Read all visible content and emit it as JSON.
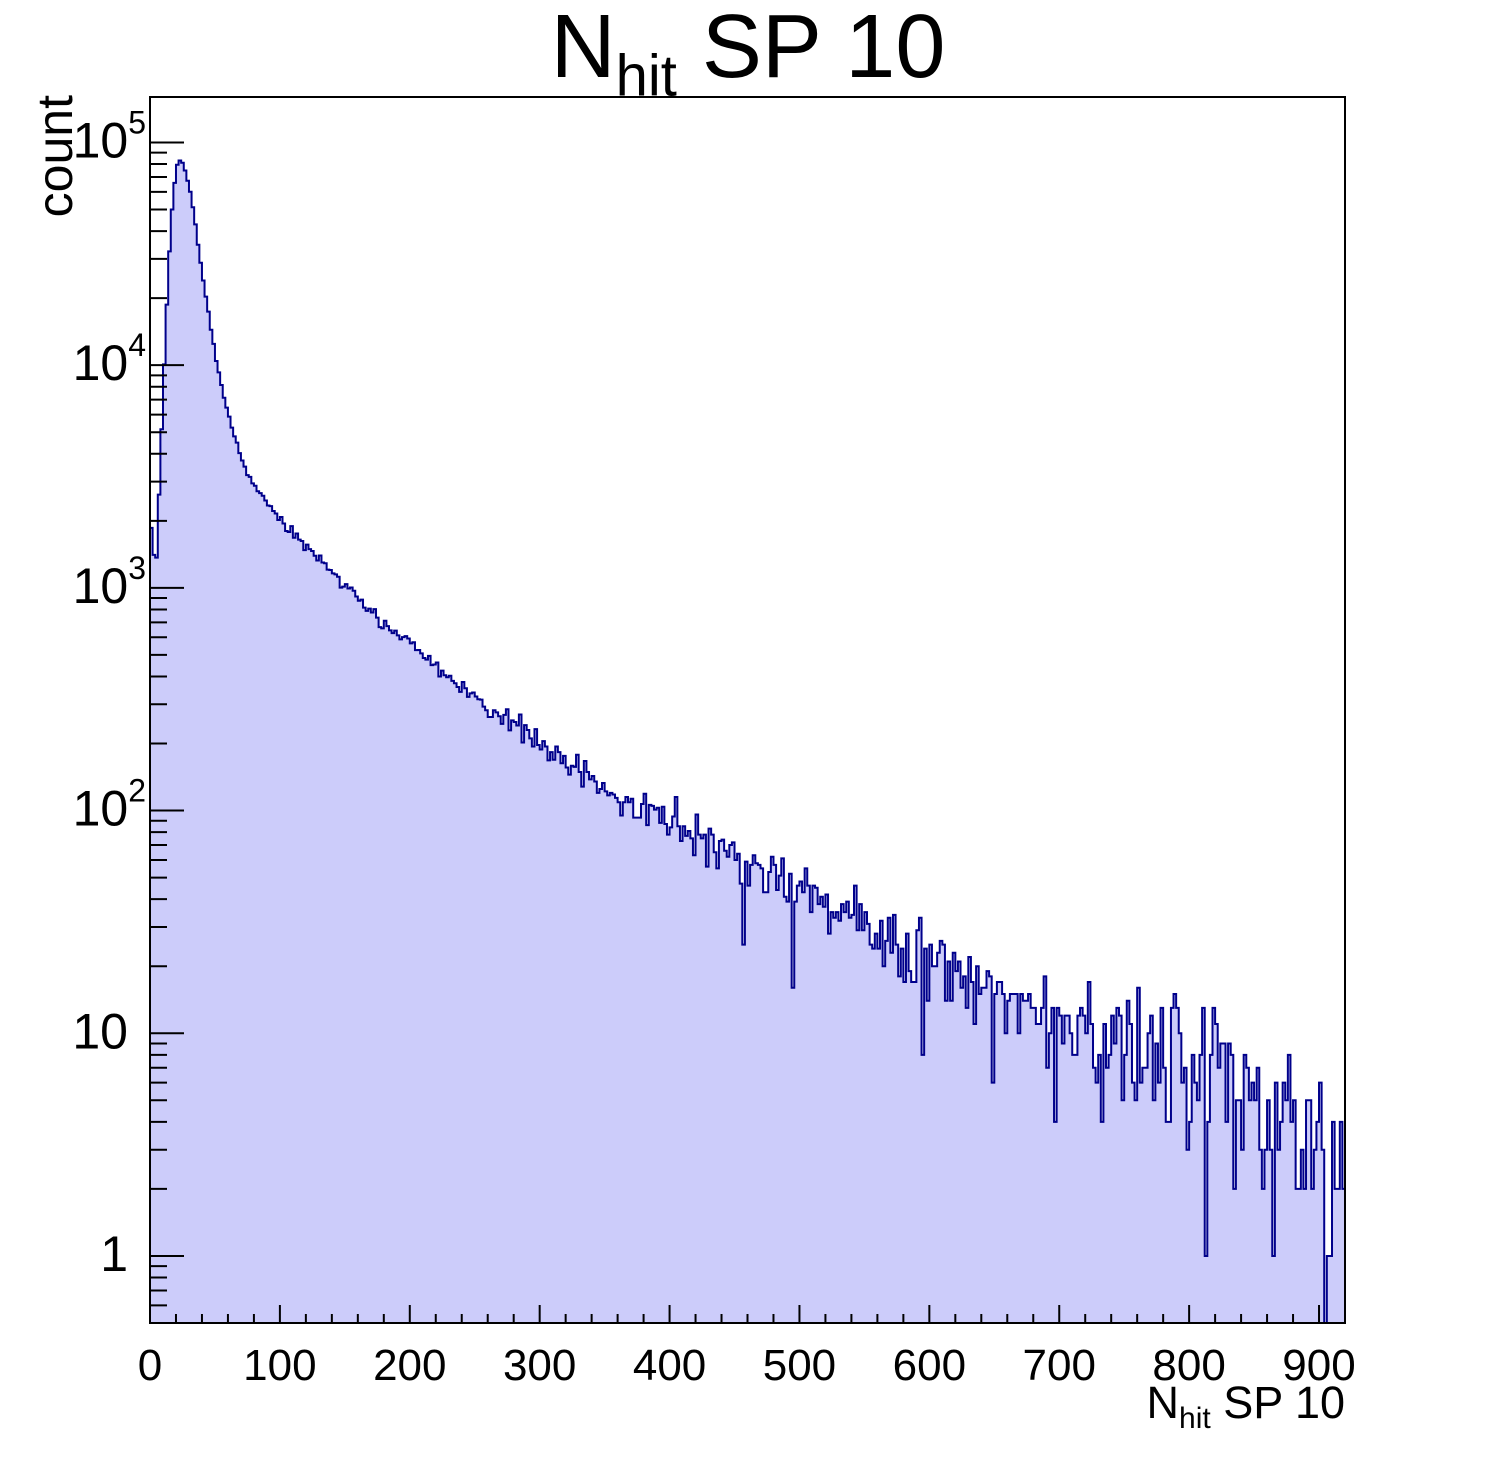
{
  "title": {
    "main": "N",
    "sub": "hit",
    "rest": " SP 10"
  },
  "chart_data": {
    "type": "histogram",
    "title": "N_{hit} SP 10",
    "xlabel": {
      "main": "N",
      "sub": "hit",
      "rest": " SP 10"
    },
    "ylabel": "count",
    "x_range": [
      0,
      920
    ],
    "bin_width": 2,
    "y_scale": "log",
    "y_range": [
      0.5,
      160000
    ],
    "grid": false,
    "legend": "none",
    "x_major_tick_step": 100,
    "x_minor_tick_step": 20,
    "x_tick_labels": [
      "0",
      "100",
      "200",
      "300",
      "400",
      "500",
      "600",
      "700",
      "800",
      "900"
    ],
    "y_tick_labels": [
      {
        "value": 1,
        "base": "1",
        "exp": ""
      },
      {
        "value": 10,
        "base": "10",
        "exp": ""
      },
      {
        "value": 100,
        "base": "10",
        "exp": "2"
      },
      {
        "value": 1000,
        "base": "10",
        "exp": "3"
      },
      {
        "value": 10000,
        "base": "10",
        "exp": "4"
      },
      {
        "value": 100000,
        "base": "10",
        "exp": "5"
      }
    ],
    "peak": {
      "x": 22,
      "count": 83500
    },
    "first_bin_count": 2450,
    "dip": {
      "x": 4,
      "count": 1350
    },
    "mean_curve": [
      [
        0,
        2450
      ],
      [
        2,
        1450
      ],
      [
        5,
        1350
      ],
      [
        8,
        3600
      ],
      [
        11,
        10000
      ],
      [
        14,
        26000
      ],
      [
        17,
        50000
      ],
      [
        20,
        76000
      ],
      [
        22,
        83500
      ],
      [
        25,
        81000
      ],
      [
        28,
        72000
      ],
      [
        31,
        60000
      ],
      [
        34,
        47000
      ],
      [
        38,
        31500
      ],
      [
        42,
        22000
      ],
      [
        46,
        15800
      ],
      [
        50,
        11500
      ],
      [
        55,
        8100
      ],
      [
        60,
        6100
      ],
      [
        65,
        4800
      ],
      [
        72,
        3600
      ],
      [
        80,
        2900
      ],
      [
        88,
        2450
      ],
      [
        96,
        2150
      ],
      [
        105,
        1900
      ],
      [
        115,
        1650
      ],
      [
        125,
        1450
      ],
      [
        135,
        1280
      ],
      [
        146,
        1100
      ],
      [
        158,
        930
      ],
      [
        170,
        790
      ],
      [
        184,
        665
      ],
      [
        200,
        558
      ],
      [
        215,
        475
      ],
      [
        231,
        390
      ],
      [
        246,
        332
      ],
      [
        261,
        285
      ],
      [
        277,
        248
      ],
      [
        292,
        218
      ],
      [
        307,
        187
      ],
      [
        323,
        160
      ],
      [
        338,
        137
      ],
      [
        354,
        124
      ],
      [
        375,
        107
      ],
      [
        400,
        90
      ],
      [
        425,
        75
      ],
      [
        450,
        62
      ],
      [
        475,
        52
      ],
      [
        500,
        44
      ],
      [
        525,
        37
      ],
      [
        550,
        31
      ],
      [
        575,
        26.5
      ],
      [
        600,
        22.5
      ],
      [
        625,
        19
      ],
      [
        650,
        16.5
      ],
      [
        675,
        14
      ],
      [
        700,
        12
      ],
      [
        725,
        10.5
      ],
      [
        750,
        9.2
      ],
      [
        775,
        8.1
      ],
      [
        800,
        7.2
      ],
      [
        825,
        6.4
      ],
      [
        850,
        5.6
      ],
      [
        870,
        4.9
      ],
      [
        885,
        4.2
      ],
      [
        895,
        3.4
      ],
      [
        905,
        2.4
      ],
      [
        912,
        1.7
      ],
      [
        918,
        1.2
      ],
      [
        920,
        1.0
      ]
    ],
    "noise": {
      "model": "poisson",
      "seed": 20,
      "notch_prob": 0.02,
      "notch_factor": [
        0.15,
        0.5
      ]
    },
    "style": {
      "fill_color": "#ccccfa",
      "line_color": "#00008b",
      "line_width": 2,
      "frame_color": "#000000",
      "background": "#ffffff"
    }
  }
}
